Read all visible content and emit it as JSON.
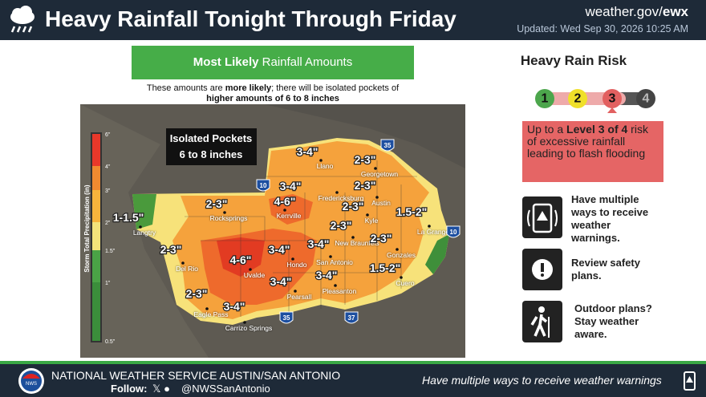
{
  "header": {
    "title": "Heavy Rainfall Tonight Through Friday",
    "site": "weather.gov/",
    "site_bold": "ewx",
    "updated": "Updated: Wed Sep 30, 2026 10:25 AM"
  },
  "map_panel": {
    "banner_bold": "Most Likely",
    "banner": "Rainfall Amounts",
    "note": [
      "These amounts are ",
      "more likely",
      "; there will be isolated pockets of",
      "higher amounts of 6 to 8 inches"
    ],
    "callout": [
      "Isolated Pockets",
      "6 to 8 inches"
    ],
    "legend": {
      "title": "Storm Total Precipitation (in)",
      "ticks": [
        "6\"",
        "4\"",
        "3\"",
        "2\"",
        "1.5\"",
        "1\"",
        "0.5\""
      ]
    },
    "amounts": [
      "1-1.5\"",
      "2-3\"",
      "4-6\"",
      "3-4\"",
      "2-3\"",
      "3-4\"",
      "2-3\"",
      "2-3\"",
      "2-3\"",
      "1.5-2\"",
      "2-3\"",
      "4-6\"",
      "3-4\"",
      "3-4\"",
      "2-3\"",
      "1.5-2\"",
      "3-4\"",
      "3-4\"",
      "2-3\"",
      "3-4\""
    ],
    "cities": [
      "Langtry",
      "Del Rio",
      "Eagle Pass",
      "Rocksprings",
      "Uvalde",
      "Carrizo Springs",
      "Kerrville",
      "Hondo",
      "Pearsall",
      "Llano",
      "Fredericksburg",
      "Georgetown",
      "Austin",
      "Kyle",
      "New Braunfels",
      "San Antonio",
      "Pleasanton",
      "Gonzales",
      "Cuero",
      "La Grange"
    ],
    "highways": [
      "35",
      "10",
      "10",
      "35",
      "37"
    ]
  },
  "risk": {
    "title": "Heavy Rain Risk",
    "levels": [
      "1",
      "2",
      "3",
      "4"
    ],
    "text_pre": "Up to a ",
    "text_bold": "Level 3 of 4",
    "text_post": " risk of excessive rainfall leading to flash flooding"
  },
  "tips": [
    "Have multiple ways to receive weather warnings.",
    "Review safety plans.",
    "Outdoor plans? Stay weather aware."
  ],
  "footer": {
    "office": "NATIONAL WEATHER SERVICE AUSTIN/SAN ANTONIO",
    "follow": "Follow:",
    "handle": "@NWSSanAntonio",
    "tagline": "Have multiple ways to receive weather warnings"
  }
}
